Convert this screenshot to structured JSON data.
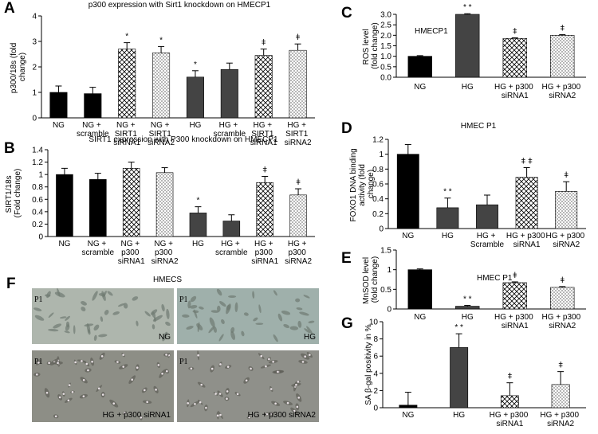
{
  "chart_data": [
    {
      "type": "bar",
      "panel": "A",
      "title": "p300 expression with Sirt1 knockdown on HMECP1",
      "ylabel": "p300/18s (fold change)",
      "categories": [
        "NG",
        "NG + scramble",
        "NG + SIRT1 siRNA1",
        "NG + SIRT1 siRNA2",
        "HG",
        "HG + scramble",
        "HG + SIRT1 siRNA1",
        "HG + SIRT1 siRNA2"
      ],
      "values": [
        1.0,
        0.95,
        2.7,
        2.55,
        1.6,
        1.9,
        2.45,
        2.65
      ],
      "errors": [
        0.25,
        0.25,
        0.25,
        0.25,
        0.25,
        0.25,
        0.25,
        0.25
      ],
      "annotations": [
        null,
        null,
        "*",
        "*",
        "*",
        null,
        "ǂ",
        "ǂ"
      ],
      "fills": [
        "black",
        "black",
        "crosshatch",
        "dots",
        "gray",
        "gray",
        "crosshatch",
        "dots"
      ],
      "ylim": [
        0,
        4
      ],
      "yticks": [
        0,
        1,
        2,
        3,
        4
      ]
    },
    {
      "type": "bar",
      "panel": "B",
      "title": "SIRT1 expression with P300 knockdown on HMECP1",
      "ylabel": "SIRT1/18s (Fold change)",
      "categories": [
        "NG",
        "NG + scramble",
        "NG + p300 siRNA1",
        "NG + p300 siRNA2",
        "HG",
        "HG + scramble",
        "HG + p300 siRNA1",
        "HG + p300 siRNA2"
      ],
      "values": [
        1.0,
        0.92,
        1.1,
        1.03,
        0.38,
        0.25,
        0.87,
        0.67
      ],
      "errors": [
        0.1,
        0.1,
        0.1,
        0.08,
        0.1,
        0.1,
        0.1,
        0.1
      ],
      "annotations": [
        null,
        null,
        null,
        null,
        "*",
        null,
        "ǂ",
        "ǂ"
      ],
      "fills": [
        "black",
        "black",
        "crosshatch",
        "dots",
        "gray",
        "gray",
        "crosshatch",
        "dots"
      ],
      "ylim": [
        0,
        1.4
      ],
      "yticks": [
        0,
        0.2,
        0.4,
        0.6,
        0.8,
        1,
        1.2,
        1.4
      ]
    },
    {
      "type": "bar",
      "panel": "C",
      "note": "HMECP1",
      "ylabel": "ROS level (fold change)",
      "categories": [
        "NG",
        "HG",
        "HG + p300 siRNA1",
        "HG + p300 siRNA2"
      ],
      "values": [
        1.0,
        3.0,
        1.85,
        2.0
      ],
      "errors": [
        0.03,
        0.03,
        0.03,
        0.03
      ],
      "annotations": [
        null,
        "* *",
        "ǂ",
        "ǂ"
      ],
      "fills": [
        "black",
        "gray",
        "crosshatch",
        "dots"
      ],
      "ylim": [
        0,
        3
      ],
      "yticks": [
        {
          "value": 0,
          "label": "0.0"
        },
        0.5,
        {
          "value": 1,
          "label": "1.0"
        },
        1.5,
        {
          "value": 2,
          "label": "2.0"
        },
        2.5,
        {
          "value": 3,
          "label": "3.0"
        }
      ]
    },
    {
      "type": "bar",
      "panel": "D",
      "title": "HMEC P1",
      "ylabel": "FOXO1 DNA binding activity (fold change)",
      "categories": [
        "NG",
        "HG",
        "HG + Scramble",
        "HG + p300 siRNA1",
        "HG + p300 siRNA2"
      ],
      "values": [
        1.0,
        0.28,
        0.32,
        0.69,
        0.5
      ],
      "errors": [
        0.13,
        0.13,
        0.13,
        0.13,
        0.13
      ],
      "annotations": [
        "",
        "* *",
        null,
        "ǂ ǂ",
        "ǂ"
      ],
      "fills": [
        "black",
        "gray",
        "gray",
        "crosshatch",
        "dots"
      ],
      "ylim": [
        0,
        1.2
      ],
      "yticks": [
        0,
        0.2,
        0.4,
        0.6,
        0.8,
        1,
        1.2
      ]
    },
    {
      "type": "bar",
      "panel": "E",
      "note": "HMEC P1",
      "ylabel": "MnSOD level (fold change)",
      "categories": [
        "NG",
        "HG",
        "HG + p300 siRNA1",
        "HG + p300 siRNA2"
      ],
      "values": [
        1.0,
        0.07,
        0.67,
        0.55
      ],
      "errors": [
        0.02,
        0.02,
        0.02,
        0.02
      ],
      "annotations": [
        null,
        "* *",
        "ǂ",
        "ǂ"
      ],
      "fills": [
        "black",
        "gray",
        "crosshatch",
        "dots"
      ],
      "ylim": [
        0,
        1.5
      ],
      "yticks": [
        0,
        0.5,
        1,
        1.5
      ]
    },
    {
      "type": "bar",
      "panel": "G",
      "ylabel": "SA β-gal positivity in %",
      "categories": [
        "NG",
        "HG",
        "HG + p300 siRNA1",
        "HG + p300 siRNA2"
      ],
      "values": [
        0.3,
        7.0,
        1.4,
        2.7
      ],
      "errors": [
        1.5,
        1.6,
        1.5,
        1.5
      ],
      "annotations": [
        null,
        "* *",
        "ǂ",
        "ǂ"
      ],
      "fills": [
        "black",
        "gray",
        "crosshatch",
        "dots"
      ],
      "ylim": [
        0,
        10
      ],
      "yticks": [
        0,
        2,
        4,
        6,
        8,
        10
      ]
    }
  ],
  "micrograph": {
    "panel": "F",
    "title": "HMECS",
    "images": [
      {
        "corner": "P1",
        "label": "NG"
      },
      {
        "corner": "P1",
        "label": "HG"
      },
      {
        "corner": "P1",
        "label": "HG + p300 siRNA1"
      },
      {
        "corner": "P1",
        "label": "HG + p300 siRNA2"
      }
    ]
  }
}
